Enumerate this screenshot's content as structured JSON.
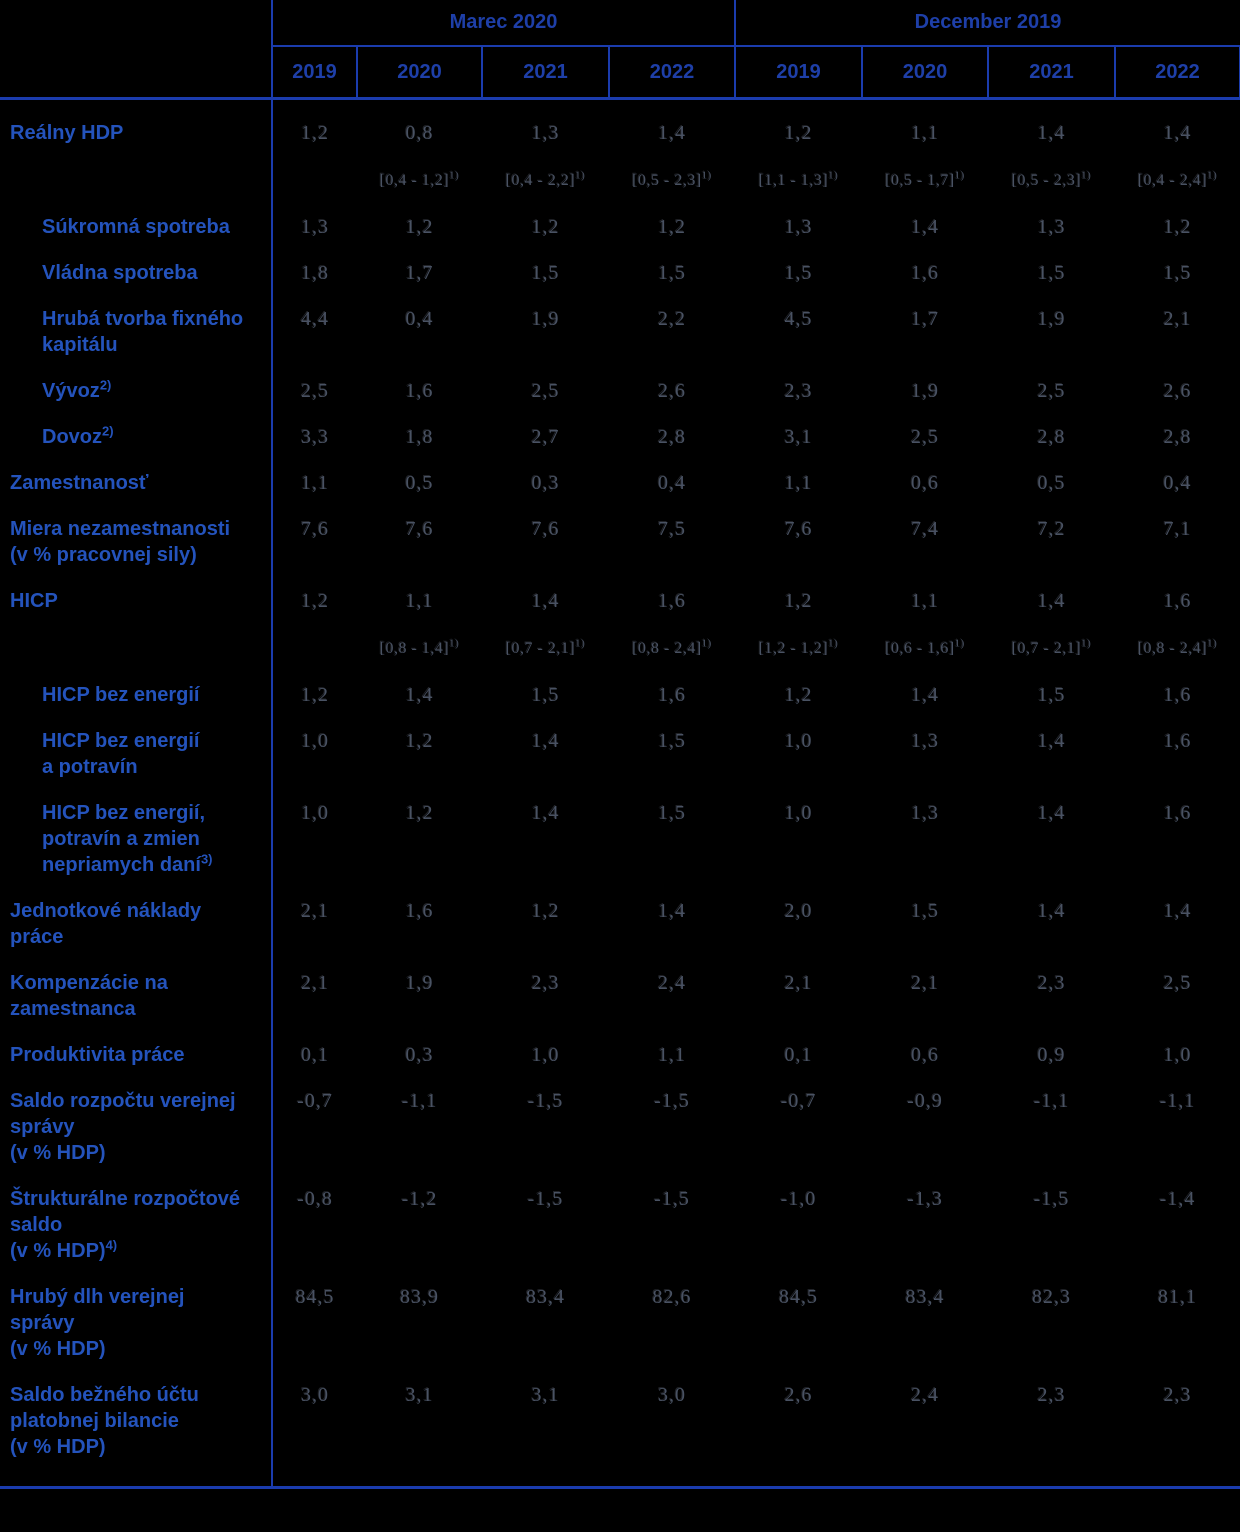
{
  "table": {
    "colors": {
      "background": "#000000",
      "line_blue": "#1b3cae",
      "header_text_blue": "#1e3fa8",
      "label_text_blue": "#2453bc",
      "value_text_gray": "#495263"
    },
    "group_headers": [
      {
        "label": "Marec 2020"
      },
      {
        "label": "December 2019"
      }
    ],
    "year_headers": [
      "2019",
      "2020",
      "2021",
      "2022",
      "2019",
      "2020",
      "2021",
      "2022"
    ],
    "footnote_sup": "1)",
    "rows": [
      {
        "id": "realny-hdp",
        "indent": false,
        "label_lines": [
          {
            "text": "Reálny HDP"
          }
        ],
        "values": [
          "1,2",
          "0,8",
          "1,3",
          "1,4",
          "1,2",
          "1,1",
          "1,4",
          "1,4"
        ],
        "ranges": [
          "",
          "[0,4 - 1,2]",
          "[0,4 - 2,2]",
          "[0,5 - 2,3]",
          "[1,1 - 1,3]",
          "[0,5 - 1,7]",
          "[0,5 - 2,3]",
          "[0,4 - 2,4]"
        ]
      },
      {
        "id": "sukromna-spotreba",
        "indent": true,
        "label_lines": [
          {
            "text": "Súkromná spotreba"
          }
        ],
        "values": [
          "1,3",
          "1,2",
          "1,2",
          "1,2",
          "1,3",
          "1,4",
          "1,3",
          "1,2"
        ]
      },
      {
        "id": "vladna-spotreba",
        "indent": true,
        "label_lines": [
          {
            "text": "Vládna spotreba"
          }
        ],
        "values": [
          "1,8",
          "1,7",
          "1,5",
          "1,5",
          "1,5",
          "1,6",
          "1,5",
          "1,5"
        ]
      },
      {
        "id": "hruba-tvorba-fixneho-kapitalu",
        "indent": true,
        "label_lines": [
          {
            "text": "Hrubá tvorba fixného"
          },
          {
            "text": "kapitálu"
          }
        ],
        "values": [
          "4,4",
          "0,4",
          "1,9",
          "2,2",
          "4,5",
          "1,7",
          "1,9",
          "2,1"
        ]
      },
      {
        "id": "vyvoz",
        "indent": true,
        "label_lines": [
          {
            "text": "Vývoz",
            "sup": "2)"
          }
        ],
        "values": [
          "2,5",
          "1,6",
          "2,5",
          "2,6",
          "2,3",
          "1,9",
          "2,5",
          "2,6"
        ]
      },
      {
        "id": "dovoz",
        "indent": true,
        "label_lines": [
          {
            "text": "Dovoz",
            "sup": "2)"
          }
        ],
        "values": [
          "3,3",
          "1,8",
          "2,7",
          "2,8",
          "3,1",
          "2,5",
          "2,8",
          "2,8"
        ]
      },
      {
        "id": "zamestnanost",
        "indent": false,
        "label_lines": [
          {
            "text": "Zamestnanosť"
          }
        ],
        "values": [
          "1,1",
          "0,5",
          "0,3",
          "0,4",
          "1,1",
          "0,6",
          "0,5",
          "0,4"
        ]
      },
      {
        "id": "miera-nezamestnanosti",
        "indent": false,
        "label_lines": [
          {
            "text": "Miera nezamestnanosti"
          },
          {
            "text": "(v % pracovnej sily)"
          }
        ],
        "values": [
          "7,6",
          "7,6",
          "7,6",
          "7,5",
          "7,6",
          "7,4",
          "7,2",
          "7,1"
        ]
      },
      {
        "id": "hicp",
        "indent": false,
        "label_lines": [
          {
            "text": "HICP"
          }
        ],
        "values": [
          "1,2",
          "1,1",
          "1,4",
          "1,6",
          "1,2",
          "1,1",
          "1,4",
          "1,6"
        ],
        "ranges": [
          "",
          "[0,8 - 1,4]",
          "[0,7 - 2,1]",
          "[0,8 - 2,4]",
          "[1,2 - 1,2]",
          "[0,6 - 1,6]",
          "[0,7 - 2,1]",
          "[0,8 - 2,4]"
        ]
      },
      {
        "id": "hicp-bez-energii",
        "indent": true,
        "label_lines": [
          {
            "text": "HICP bez energií"
          }
        ],
        "values": [
          "1,2",
          "1,4",
          "1,5",
          "1,6",
          "1,2",
          "1,4",
          "1,5",
          "1,6"
        ]
      },
      {
        "id": "hicp-bez-energii-a-potravin",
        "indent": true,
        "label_lines": [
          {
            "text": "HICP bez energií"
          },
          {
            "text": "a potravín"
          }
        ],
        "values": [
          "1,0",
          "1,2",
          "1,4",
          "1,5",
          "1,0",
          "1,3",
          "1,4",
          "1,6"
        ]
      },
      {
        "id": "hicp-bez-energii-potravin-dani",
        "indent": true,
        "label_lines": [
          {
            "text": "HICP bez energií,"
          },
          {
            "text": "potravín a zmien"
          },
          {
            "text": "nepriamych daní",
            "sup": "3)"
          }
        ],
        "values": [
          "1,0",
          "1,2",
          "1,4",
          "1,5",
          "1,0",
          "1,3",
          "1,4",
          "1,6"
        ]
      },
      {
        "id": "jednotkove-naklady-prace",
        "indent": false,
        "label_lines": [
          {
            "text": "Jednotkové náklady"
          },
          {
            "text": "práce"
          }
        ],
        "values": [
          "2,1",
          "1,6",
          "1,2",
          "1,4",
          "2,0",
          "1,5",
          "1,4",
          "1,4"
        ]
      },
      {
        "id": "kompenzacie-na-zamestnanca",
        "indent": false,
        "label_lines": [
          {
            "text": "Kompenzácie na"
          },
          {
            "text": "zamestnanca"
          }
        ],
        "values": [
          "2,1",
          "1,9",
          "2,3",
          "2,4",
          "2,1",
          "2,1",
          "2,3",
          "2,5"
        ]
      },
      {
        "id": "produktivita-prace",
        "indent": false,
        "label_lines": [
          {
            "text": "Produktivita práce"
          }
        ],
        "values": [
          "0,1",
          "0,3",
          "1,0",
          "1,1",
          "0,1",
          "0,6",
          "0,9",
          "1,0"
        ]
      },
      {
        "id": "saldo-rozpoctu-verejnej-spravy",
        "indent": false,
        "label_lines": [
          {
            "text": "Saldo rozpočtu verejnej"
          },
          {
            "text": "správy"
          },
          {
            "text": "(v % HDP)"
          }
        ],
        "values": [
          "-0,7",
          "-1,1",
          "-1,5",
          "-1,5",
          "-0,7",
          "-0,9",
          "-1,1",
          "-1,1"
        ]
      },
      {
        "id": "strukturalne-rozpoctove-saldo",
        "indent": false,
        "label_lines": [
          {
            "text": "Štrukturálne rozpočtové"
          },
          {
            "text": "saldo"
          },
          {
            "text": "(v % HDP)",
            "sup": "4)"
          }
        ],
        "values": [
          "-0,8",
          "-1,2",
          "-1,5",
          "-1,5",
          "-1,0",
          "-1,3",
          "-1,5",
          "-1,4"
        ]
      },
      {
        "id": "hruby-dlh-verejnej-spravy",
        "indent": false,
        "label_lines": [
          {
            "text": "Hrubý dlh verejnej"
          },
          {
            "text": "správy"
          },
          {
            "text": "(v % HDP)"
          }
        ],
        "values": [
          "84,5",
          "83,9",
          "83,4",
          "82,6",
          "84,5",
          "83,4",
          "82,3",
          "81,1"
        ]
      },
      {
        "id": "saldo-bezneho-uctu",
        "indent": false,
        "label_lines": [
          {
            "text": "Saldo bežného účtu"
          },
          {
            "text": "platobnej bilancie"
          },
          {
            "text": "(v % HDP)"
          }
        ],
        "values": [
          "3,0",
          "3,1",
          "3,1",
          "3,0",
          "2,6",
          "2,4",
          "2,3",
          "2,3"
        ]
      }
    ]
  }
}
